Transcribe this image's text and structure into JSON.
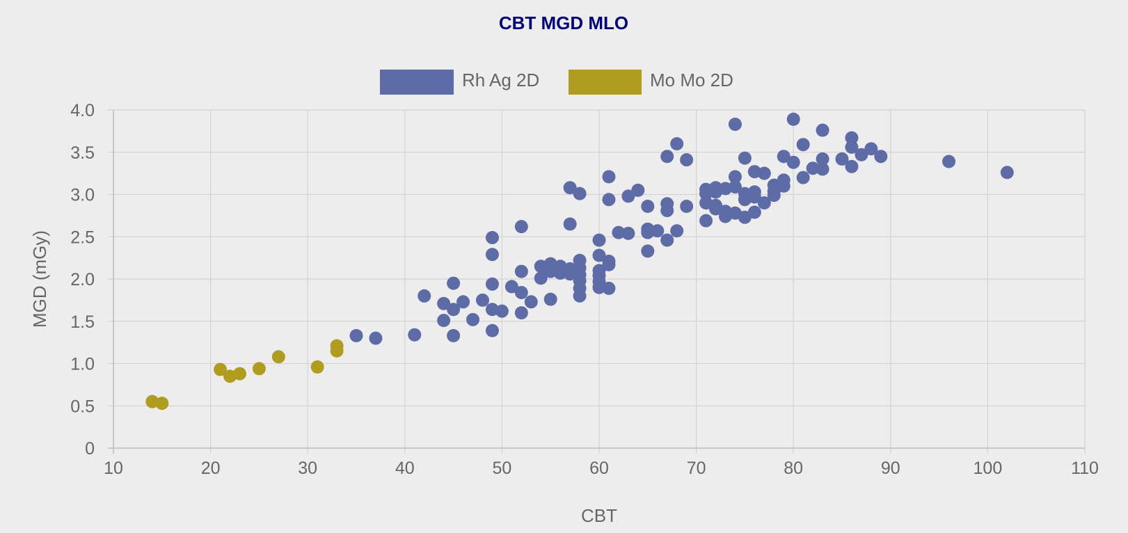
{
  "chart_data": {
    "type": "scatter",
    "title": "CBT MGD MLO",
    "xlabel": "CBT",
    "ylabel": "MGD (mGy)",
    "xlim": [
      10,
      110
    ],
    "ylim": [
      0,
      4.0
    ],
    "x_ticks": [
      "10",
      "20",
      "30",
      "40",
      "50",
      "60",
      "70",
      "80",
      "90",
      "100",
      "110"
    ],
    "y_ticks": [
      "0",
      "0.5",
      "1.0",
      "1.5",
      "2.0",
      "2.5",
      "3.0",
      "3.5",
      "4.0"
    ],
    "grid": true,
    "legend_position": "top-center",
    "series": [
      {
        "name": "Rh Ag 2D",
        "color": "#5d6ba6",
        "points": [
          [
            35,
            1.33
          ],
          [
            37,
            1.3
          ],
          [
            41,
            1.34
          ],
          [
            42,
            1.8
          ],
          [
            44,
            1.51
          ],
          [
            44,
            1.71
          ],
          [
            45,
            1.33
          ],
          [
            45,
            1.64
          ],
          [
            45,
            1.95
          ],
          [
            46,
            1.73
          ],
          [
            47,
            1.52
          ],
          [
            48,
            1.75
          ],
          [
            49,
            1.39
          ],
          [
            49,
            1.64
          ],
          [
            49,
            1.94
          ],
          [
            49,
            2.29
          ],
          [
            49,
            2.49
          ],
          [
            50,
            1.62
          ],
          [
            51,
            1.91
          ],
          [
            52,
            1.6
          ],
          [
            52,
            1.84
          ],
          [
            52,
            2.09
          ],
          [
            52,
            2.62
          ],
          [
            53,
            1.73
          ],
          [
            54,
            2.01
          ],
          [
            54,
            2.15
          ],
          [
            55,
            1.76
          ],
          [
            55,
            2.09
          ],
          [
            55,
            2.18
          ],
          [
            56,
            2.07
          ],
          [
            56,
            2.15
          ],
          [
            57,
            2.06
          ],
          [
            57,
            2.12
          ],
          [
            57,
            2.65
          ],
          [
            57,
            3.08
          ],
          [
            58,
            1.8
          ],
          [
            58,
            1.89
          ],
          [
            58,
            1.98
          ],
          [
            58,
            2.05
          ],
          [
            58,
            2.13
          ],
          [
            58,
            2.22
          ],
          [
            58,
            3.01
          ],
          [
            60,
            1.9
          ],
          [
            60,
            1.97
          ],
          [
            60,
            2.04
          ],
          [
            60,
            2.1
          ],
          [
            60,
            2.28
          ],
          [
            60,
            2.46
          ],
          [
            61,
            1.89
          ],
          [
            61,
            2.17
          ],
          [
            61,
            2.21
          ],
          [
            61,
            2.94
          ],
          [
            61,
            3.21
          ],
          [
            62,
            2.55
          ],
          [
            63,
            2.54
          ],
          [
            63,
            2.98
          ],
          [
            64,
            3.05
          ],
          [
            65,
            2.33
          ],
          [
            65,
            2.55
          ],
          [
            65,
            2.59
          ],
          [
            65,
            2.86
          ],
          [
            66,
            2.57
          ],
          [
            67,
            2.46
          ],
          [
            67,
            2.81
          ],
          [
            67,
            2.89
          ],
          [
            67,
            3.45
          ],
          [
            68,
            2.57
          ],
          [
            68,
            3.6
          ],
          [
            69,
            2.86
          ],
          [
            69,
            3.41
          ],
          [
            71,
            2.69
          ],
          [
            71,
            2.9
          ],
          [
            71,
            3.01
          ],
          [
            71,
            3.06
          ],
          [
            72,
            2.83
          ],
          [
            72,
            2.87
          ],
          [
            72,
            3.03
          ],
          [
            72,
            3.08
          ],
          [
            73,
            2.74
          ],
          [
            73,
            2.8
          ],
          [
            73,
            3.07
          ],
          [
            74,
            2.78
          ],
          [
            74,
            3.09
          ],
          [
            74,
            3.21
          ],
          [
            74,
            3.83
          ],
          [
            75,
            2.73
          ],
          [
            75,
            2.94
          ],
          [
            75,
            3.01
          ],
          [
            75,
            3.43
          ],
          [
            76,
            2.79
          ],
          [
            76,
            2.97
          ],
          [
            76,
            3.03
          ],
          [
            76,
            3.27
          ],
          [
            77,
            2.9
          ],
          [
            77,
            3.25
          ],
          [
            78,
            2.99
          ],
          [
            78,
            3.04
          ],
          [
            78,
            3.11
          ],
          [
            79,
            3.1
          ],
          [
            79,
            3.17
          ],
          [
            79,
            3.45
          ],
          [
            80,
            3.38
          ],
          [
            80,
            3.89
          ],
          [
            81,
            3.2
          ],
          [
            81,
            3.59
          ],
          [
            82,
            3.31
          ],
          [
            83,
            3.3
          ],
          [
            83,
            3.42
          ],
          [
            83,
            3.76
          ],
          [
            85,
            3.42
          ],
          [
            86,
            3.33
          ],
          [
            86,
            3.56
          ],
          [
            86,
            3.67
          ],
          [
            87,
            3.47
          ],
          [
            88,
            3.54
          ],
          [
            89,
            3.45
          ],
          [
            96,
            3.39
          ],
          [
            102,
            3.26
          ]
        ]
      },
      {
        "name": "Mo Mo 2D",
        "color": "#b09c1e",
        "points": [
          [
            14,
            0.55
          ],
          [
            15,
            0.53
          ],
          [
            21,
            0.93
          ],
          [
            22,
            0.85
          ],
          [
            23,
            0.88
          ],
          [
            25,
            0.94
          ],
          [
            27,
            1.08
          ],
          [
            31,
            0.96
          ],
          [
            33,
            1.15
          ],
          [
            33,
            1.21
          ]
        ]
      }
    ]
  }
}
